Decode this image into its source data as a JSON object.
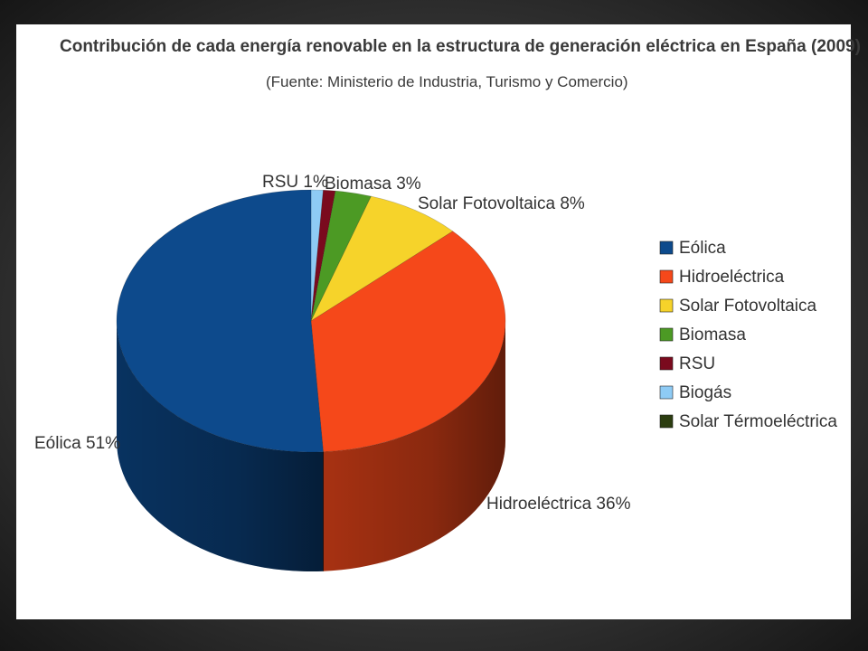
{
  "chart_data": {
    "type": "pie",
    "title": "Contribución de cada energía renovable en la estructura de generación eléctrica en España (2009)",
    "subtitle": "(Fuente: Ministerio de Industria, Turismo y Comercio)",
    "three_d": true,
    "legend_position": "right",
    "slices": [
      {
        "key": "eolica",
        "name": "Eólica",
        "value": 51,
        "label": "Eólica 51%",
        "color": "#0d4a8c"
      },
      {
        "key": "hidro",
        "name": "Hidroeléctrica",
        "value": 36,
        "label": "Hidroeléctrica 36%",
        "color": "#f5481a"
      },
      {
        "key": "solarfv",
        "name": "Solar Fotovoltaica",
        "value": 8,
        "label": "Solar Fotovoltaica 8%",
        "color": "#f6d32a"
      },
      {
        "key": "biomasa",
        "name": "Biomasa",
        "value": 3,
        "label": "Biomasa 3%",
        "color": "#4c9a24"
      },
      {
        "key": "rsu",
        "name": "RSU",
        "value": 1,
        "label": "RSU 1%",
        "color": "#7a0a1e"
      },
      {
        "key": "biogas",
        "name": "Biogás",
        "value": 1,
        "label": "",
        "color": "#8ecbf5"
      },
      {
        "key": "solarte",
        "name": "Solar Térmoeléctrica",
        "value": 0,
        "label": "",
        "color": "#2c3d10"
      }
    ]
  }
}
